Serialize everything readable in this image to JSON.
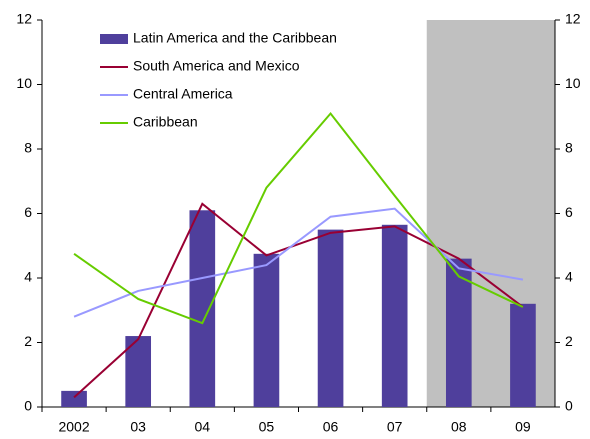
{
  "chart_data": {
    "type": "bar",
    "categories": [
      "2002",
      "03",
      "04",
      "05",
      "06",
      "07",
      "08",
      "09"
    ],
    "series": [
      {
        "name": "Latin America and the Caribbean",
        "type": "bar",
        "color": "#4f3f9c",
        "values": [
          0.5,
          2.2,
          6.1,
          4.75,
          5.5,
          5.65,
          4.6,
          3.2
        ]
      },
      {
        "name": "South America and Mexico",
        "type": "line",
        "color": "#990033",
        "values": [
          0.3,
          2.1,
          6.3,
          4.7,
          5.4,
          5.6,
          4.6,
          3.1
        ]
      },
      {
        "name": "Central America",
        "type": "line",
        "color": "#9999ff",
        "values": [
          2.8,
          3.6,
          4.0,
          4.4,
          5.9,
          6.15,
          4.3,
          3.95
        ]
      },
      {
        "name": "Caribbean",
        "type": "line",
        "color": "#66cc00",
        "values": [
          4.75,
          3.35,
          2.6,
          6.8,
          9.1,
          6.55,
          4.05,
          3.1
        ]
      }
    ],
    "ylim": [
      0,
      12
    ],
    "yticks": [
      0,
      2,
      4,
      6,
      8,
      10,
      12
    ],
    "y2lim": [
      0,
      12
    ],
    "y2ticks": [
      0,
      2,
      4,
      6,
      8,
      10,
      12
    ],
    "shade": {
      "from_index": 6,
      "color": "#c0c0c0"
    },
    "legend": "upper-left",
    "grid": false
  }
}
